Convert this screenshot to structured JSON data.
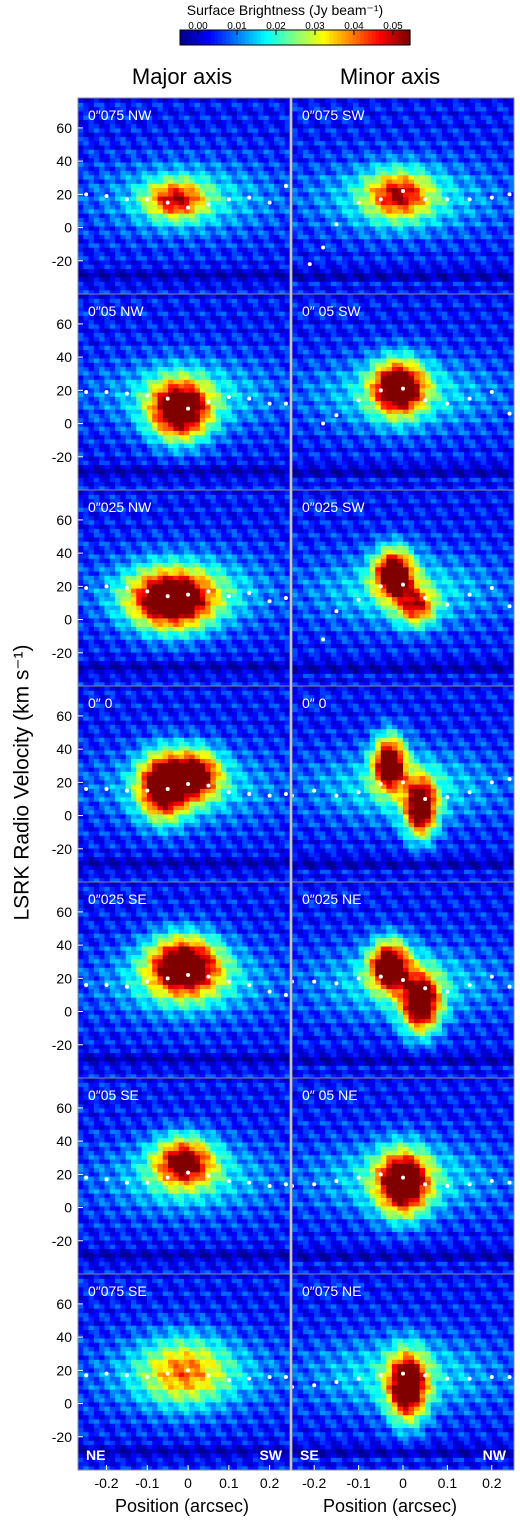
{
  "colorbar": {
    "title": "Surface Brightness (Jy beam⁻¹)",
    "ticks": [
      "0.00",
      "0.01",
      "0.02",
      "0.03",
      "0.04",
      "0.05"
    ],
    "range": [
      0.0,
      0.05
    ],
    "colors": [
      "#00008f",
      "#0000ff",
      "#0080ff",
      "#00ffff",
      "#80ff80",
      "#ffff00",
      "#ff8000",
      "#ff0000",
      "#800000"
    ]
  },
  "ylabel": "LSRK Radio Velocity (km s⁻¹)",
  "chart_data": [
    {
      "type": "heatmap",
      "title": "Major axis",
      "xlabel": "Position (arcsec)",
      "xlim": [
        -0.27,
        0.25
      ],
      "ylim": [
        -40,
        78
      ],
      "xticks": [
        "-0.2",
        "-0.1",
        "0",
        "0.1",
        "0.2"
      ],
      "yticks": [
        "60",
        "40",
        "20",
        "0",
        "-20"
      ],
      "corner_labels": [
        "NE",
        "SW"
      ],
      "panels": [
        {
          "label": "0″075 NW",
          "blobs": [
            {
              "x": -0.03,
              "y": 17,
              "sx": 0.05,
              "sy": 8,
              "amp": 0.03
            }
          ],
          "x": [
            -0.25,
            -0.2,
            -0.15,
            -0.1,
            -0.05,
            0,
            0.05,
            0.1,
            0.15,
            0.2,
            0.24
          ],
          "y": [
            20,
            19,
            17,
            17,
            15,
            12,
            14,
            17,
            18,
            15,
            25
          ]
        },
        {
          "label": "0″05 NW",
          "blobs": [
            {
              "x": -0.02,
              "y": 8,
              "sx": 0.05,
              "sy": 12,
              "amp": 0.05
            }
          ],
          "x": [
            -0.25,
            -0.2,
            -0.15,
            -0.1,
            -0.05,
            0,
            0.05,
            0.1,
            0.15,
            0.2,
            0.24
          ],
          "y": [
            19,
            19,
            18,
            17,
            15,
            9,
            13,
            16,
            15,
            12,
            12
          ]
        },
        {
          "label": "0″025 NW",
          "blobs": [
            {
              "x": -0.04,
              "y": 12,
              "sx": 0.07,
              "sy": 12,
              "amp": 0.05
            }
          ],
          "x": [
            -0.25,
            -0.2,
            -0.15,
            -0.1,
            -0.05,
            0,
            0.05,
            0.1,
            0.15,
            0.2,
            0.24
          ],
          "y": [
            19,
            20,
            19,
            17,
            14,
            15,
            17,
            14,
            16,
            11,
            13
          ]
        },
        {
          "label": "0″ 0",
          "blobs": [
            {
              "x": -0.06,
              "y": 18,
              "sx": 0.04,
              "sy": 13,
              "amp": 0.05
            },
            {
              "x": 0.02,
              "y": 25,
              "sx": 0.04,
              "sy": 10,
              "amp": 0.04
            }
          ],
          "x": [
            -0.25,
            -0.2,
            -0.15,
            -0.1,
            -0.05,
            0,
            0.05,
            0.1,
            0.15,
            0.2,
            0.24
          ],
          "y": [
            16,
            16,
            15,
            15,
            16,
            19,
            18,
            14,
            13,
            12,
            13
          ]
        },
        {
          "label": "0″025 SE",
          "blobs": [
            {
              "x": -0.01,
              "y": 28,
              "sx": 0.06,
              "sy": 12,
              "amp": 0.05
            }
          ],
          "x": [
            -0.25,
            -0.2,
            -0.15,
            -0.1,
            -0.05,
            0,
            0.05,
            0.1,
            0.15,
            0.2,
            0.24
          ],
          "y": [
            16,
            16,
            15,
            18,
            20,
            22,
            21,
            18,
            16,
            12,
            10
          ]
        },
        {
          "label": "0″05 SE",
          "blobs": [
            {
              "x": -0.01,
              "y": 28,
              "sx": 0.05,
              "sy": 10,
              "amp": 0.04
            }
          ],
          "x": [
            -0.25,
            -0.2,
            -0.15,
            -0.1,
            -0.05,
            0,
            0.05,
            0.1,
            0.15,
            0.2,
            0.24
          ],
          "y": [
            18,
            17,
            15,
            15,
            18,
            21,
            19,
            16,
            15,
            13,
            14
          ]
        },
        {
          "label": "0″075 SE",
          "blobs": [
            {
              "x": -0.01,
              "y": 20,
              "sx": 0.07,
              "sy": 14,
              "amp": 0.02
            }
          ],
          "x": [
            -0.25,
            -0.2,
            -0.15,
            -0.1,
            -0.05,
            0,
            0.05,
            0.1,
            0.15,
            0.2,
            0.24
          ],
          "y": [
            17,
            18,
            17,
            16,
            18,
            20,
            17,
            14,
            15,
            16,
            16
          ]
        }
      ]
    },
    {
      "type": "heatmap",
      "title": "Minor axis",
      "xlabel": "Position (arcsec)",
      "xlim": [
        -0.25,
        0.25
      ],
      "ylim": [
        -40,
        78
      ],
      "xticks": [
        "-0.2",
        "-0.1",
        "0",
        "0.1",
        "0.2"
      ],
      "yticks": [],
      "corner_labels": [
        "SE",
        "NW"
      ],
      "panels": [
        {
          "label": "0″075 SW",
          "blobs": [
            {
              "x": -0.01,
              "y": 20,
              "sx": 0.05,
              "sy": 10,
              "amp": 0.03
            }
          ],
          "x": [
            -0.21,
            -0.18,
            -0.15,
            -0.1,
            -0.05,
            0,
            0.05,
            0.1,
            0.15,
            0.2,
            0.24
          ],
          "y": [
            -22,
            -12,
            2,
            15,
            17,
            22,
            17,
            17,
            17,
            18,
            20
          ]
        },
        {
          "label": "0″ 05 SW",
          "blobs": [
            {
              "x": -0.01,
              "y": 22,
              "sx": 0.04,
              "sy": 11,
              "amp": 0.05
            }
          ],
          "x": [
            -0.18,
            -0.15,
            -0.1,
            -0.05,
            0,
            0.05,
            0.1,
            0.15,
            0.2,
            0.24
          ],
          "y": [
            0,
            5,
            14,
            20,
            21,
            14,
            12,
            15,
            19,
            6
          ]
        },
        {
          "label": "0″025 SW",
          "blobs": [
            {
              "x": -0.02,
              "y": 28,
              "sx": 0.03,
              "sy": 10,
              "amp": 0.05
            },
            {
              "x": 0.03,
              "y": 8,
              "sx": 0.03,
              "sy": 8,
              "amp": 0.03
            }
          ],
          "x": [
            -0.18,
            -0.15,
            -0.1,
            -0.05,
            0,
            0.05,
            0.1,
            0.15,
            0.2,
            0.24
          ],
          "y": [
            -12,
            5,
            12,
            20,
            21,
            13,
            9,
            15,
            19,
            8
          ]
        },
        {
          "label": "0″ 0",
          "blobs": [
            {
              "x": -0.03,
              "y": 32,
              "sx": 0.025,
              "sy": 11,
              "amp": 0.05
            },
            {
              "x": 0.04,
              "y": 5,
              "sx": 0.025,
              "sy": 12,
              "amp": 0.05
            }
          ],
          "x": [
            -0.25,
            -0.2,
            -0.15,
            -0.1,
            -0.05,
            0,
            0.05,
            0.1,
            0.15,
            0.2,
            0.24
          ],
          "y": [
            12,
            15,
            12,
            14,
            19,
            20,
            10,
            11,
            14,
            20,
            22
          ]
        },
        {
          "label": "0″025 NE",
          "blobs": [
            {
              "x": -0.03,
              "y": 28,
              "sx": 0.03,
              "sy": 10,
              "amp": 0.05
            },
            {
              "x": 0.04,
              "y": 5,
              "sx": 0.03,
              "sy": 12,
              "amp": 0.05
            }
          ],
          "x": [
            -0.25,
            -0.2,
            -0.15,
            -0.1,
            -0.05,
            0,
            0.05,
            0.1,
            0.15,
            0.2,
            0.24
          ],
          "y": [
            18,
            18,
            17,
            20,
            21,
            19,
            14,
            12,
            16,
            21,
            15
          ]
        },
        {
          "label": "0″ 05 NE",
          "blobs": [
            {
              "x": 0.0,
              "y": 15,
              "sx": 0.04,
              "sy": 13,
              "amp": 0.05
            }
          ],
          "x": [
            -0.25,
            -0.2,
            -0.15,
            -0.1,
            -0.05,
            0,
            0.05,
            0.1,
            0.15,
            0.2,
            0.24
          ],
          "y": [
            13,
            14,
            16,
            18,
            20,
            18,
            14,
            13,
            14,
            16,
            15
          ]
        },
        {
          "label": "0″075 NE",
          "blobs": [
            {
              "x": 0.01,
              "y": 10,
              "sx": 0.03,
              "sy": 14,
              "amp": 0.05
            }
          ],
          "x": [
            -0.25,
            -0.2,
            -0.15,
            -0.1,
            -0.05,
            0,
            0.05,
            0.1,
            0.15,
            0.2,
            0.24
          ],
          "y": [
            10,
            11,
            13,
            15,
            17,
            18,
            17,
            15,
            15,
            16,
            16
          ]
        }
      ]
    }
  ]
}
